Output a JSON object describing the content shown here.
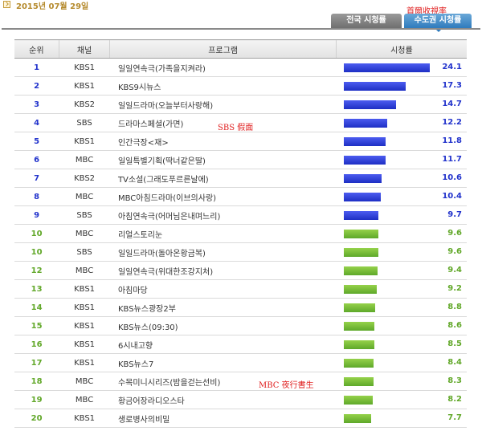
{
  "header": {
    "date": "2015년 07월 29일",
    "annotation": "首爾收視率",
    "tabs": [
      {
        "label": "전국 시청률",
        "active": false
      },
      {
        "label": "수도권 시청률",
        "active": true
      }
    ]
  },
  "columns": {
    "rank": "순위",
    "channel": "채널",
    "program": "프로그램",
    "rating": "시청률"
  },
  "rows": [
    {
      "rank": "1",
      "channel": "KBS1",
      "program": "일일연속극(가족을지켜라)",
      "rating": "24.1",
      "value": 24.1
    },
    {
      "rank": "2",
      "channel": "KBS1",
      "program": "KBS9시뉴스",
      "rating": "17.3",
      "value": 17.3
    },
    {
      "rank": "3",
      "channel": "KBS2",
      "program": "일일드라마(오늘부터사랑해)",
      "rating": "14.7",
      "value": 14.7
    },
    {
      "rank": "4",
      "channel": "SBS",
      "program": "드라마스페셜(가면)",
      "rating": "12.2",
      "value": 12.2
    },
    {
      "rank": "5",
      "channel": "KBS1",
      "program": "인간극장<재>",
      "rating": "11.8",
      "value": 11.8
    },
    {
      "rank": "6",
      "channel": "MBC",
      "program": "일일특별기획(딱너같은딸)",
      "rating": "11.7",
      "value": 11.7
    },
    {
      "rank": "7",
      "channel": "KBS2",
      "program": "TV소설(그래도푸르른날에)",
      "rating": "10.6",
      "value": 10.6
    },
    {
      "rank": "8",
      "channel": "MBC",
      "program": "MBC아침드라마(이브의사랑)",
      "rating": "10.4",
      "value": 10.4
    },
    {
      "rank": "9",
      "channel": "SBS",
      "program": "아침연속극(어머님은내며느리)",
      "rating": "9.7",
      "value": 9.7
    },
    {
      "rank": "10",
      "channel": "MBC",
      "program": "리얼스토리눈",
      "rating": "9.6",
      "value": 9.6
    },
    {
      "rank": "10",
      "channel": "SBS",
      "program": "일일드라마(돌아온황금복)",
      "rating": "9.6",
      "value": 9.6
    },
    {
      "rank": "12",
      "channel": "MBC",
      "program": "일일연속극(위대한조강지처)",
      "rating": "9.4",
      "value": 9.4
    },
    {
      "rank": "13",
      "channel": "KBS1",
      "program": "아침마당",
      "rating": "9.2",
      "value": 9.2
    },
    {
      "rank": "14",
      "channel": "KBS1",
      "program": "KBS뉴스광장2부",
      "rating": "8.8",
      "value": 8.8
    },
    {
      "rank": "15",
      "channel": "KBS1",
      "program": "KBS뉴스(09:30)",
      "rating": "8.6",
      "value": 8.6
    },
    {
      "rank": "16",
      "channel": "KBS1",
      "program": "6시내고향",
      "rating": "8.5",
      "value": 8.5
    },
    {
      "rank": "17",
      "channel": "KBS1",
      "program": "KBS뉴스7",
      "rating": "8.4",
      "value": 8.4
    },
    {
      "rank": "18",
      "channel": "MBC",
      "program": "수목미니시리즈(밤을걷는선비)",
      "rating": "8.3",
      "value": 8.3
    },
    {
      "rank": "19",
      "channel": "MBC",
      "program": "황금어장라디오스타",
      "rating": "8.2",
      "value": 8.2
    },
    {
      "rank": "20",
      "channel": "KBS1",
      "program": "생로병사의비밀",
      "rating": "7.7",
      "value": 7.7
    }
  ],
  "annotations": {
    "sbs": "SBS 假面",
    "mbc": "MBC 夜行書生"
  },
  "colors": {
    "top_bar": "#2233cc",
    "other_bar": "#62a82a",
    "annotation": "#e02020"
  },
  "max_rating": 24.1,
  "highlight_top_n": 9
}
